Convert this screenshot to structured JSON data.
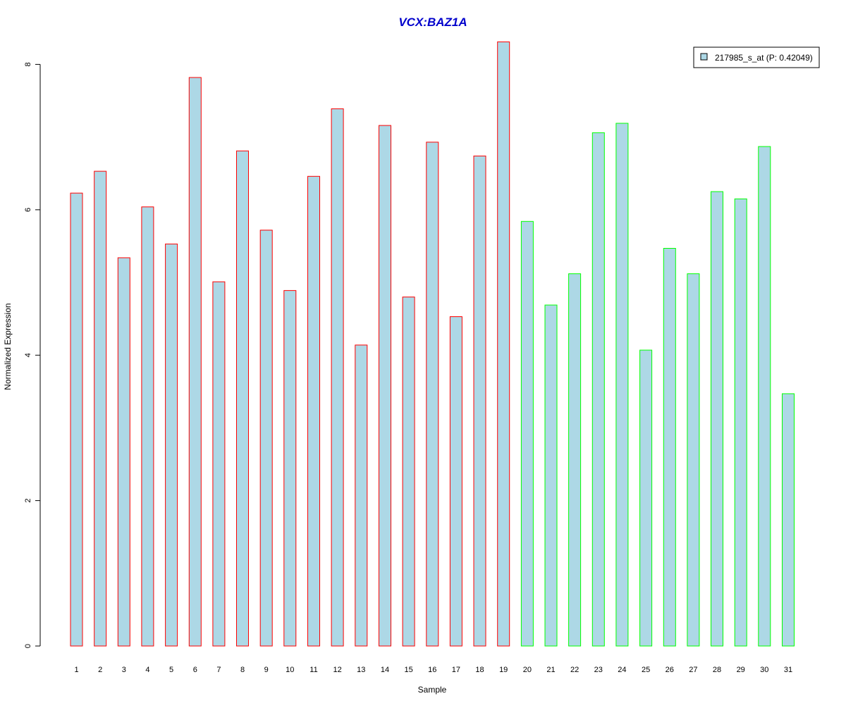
{
  "chart_data": {
    "type": "bar",
    "title": "VCX:BAZ1A",
    "xlabel": "Sample",
    "ylabel": "Normalized Expression",
    "ylim": [
      0,
      8.3
    ],
    "yticks": [
      0,
      2,
      4,
      6,
      8
    ],
    "grid": false,
    "legend_position": "top-right",
    "categories": [
      "1",
      "2",
      "3",
      "4",
      "5",
      "6",
      "7",
      "8",
      "9",
      "10",
      "11",
      "12",
      "13",
      "14",
      "15",
      "16",
      "17",
      "18",
      "19",
      "20",
      "21",
      "22",
      "23",
      "24",
      "25",
      "26",
      "27",
      "28",
      "29",
      "30",
      "31"
    ],
    "series": [
      {
        "name": "217985_s_at (P: 0.42049)",
        "values": [
          6.23,
          6.53,
          5.34,
          6.04,
          5.53,
          7.82,
          5.01,
          6.81,
          5.72,
          4.89,
          6.46,
          7.39,
          4.14,
          7.16,
          4.8,
          6.93,
          4.53,
          6.74,
          8.31,
          5.84,
          4.69,
          5.12,
          7.06,
          7.19,
          4.07,
          5.47,
          5.12,
          6.25,
          6.15,
          6.87,
          3.47
        ],
        "fill": "#ADD8E6"
      }
    ],
    "groups": [
      {
        "border_color": "#FF0000",
        "samples": [
          1,
          19
        ]
      },
      {
        "border_color": "#00FF00",
        "samples": [
          20,
          31
        ]
      }
    ],
    "colors": {
      "title": "#0000CC",
      "axis": "#000000",
      "legend_border": "#000000"
    }
  }
}
